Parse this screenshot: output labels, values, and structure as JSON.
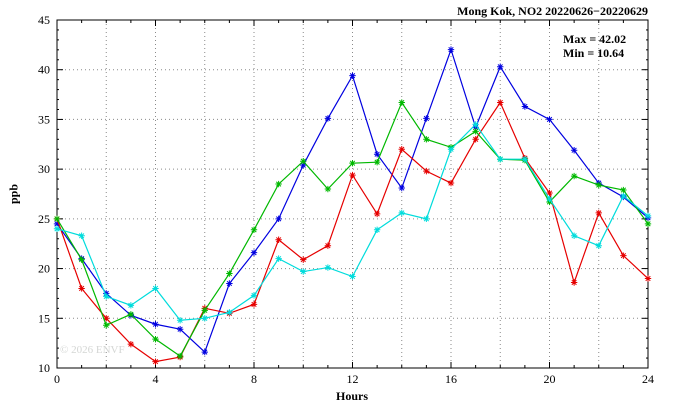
{
  "chart_data": {
    "type": "line",
    "title": "Mong Kok, NO2 20220626−20220629",
    "xlabel": "Hours",
    "ylabel": "ppb",
    "xlim": [
      0,
      24
    ],
    "ylim": [
      10,
      45
    ],
    "xticks": [
      0,
      4,
      8,
      12,
      16,
      20,
      24
    ],
    "yticks": [
      10,
      15,
      20,
      25,
      30,
      35,
      40,
      45
    ],
    "grid": true,
    "grid_x_step": 2,
    "grid_y_step": 5,
    "legend": "none",
    "annotations": [
      "Max = 42.02",
      "Min = 10.64"
    ],
    "stats": {
      "max": 42.02,
      "min": 10.64
    },
    "watermark": "© 2026 ENVF",
    "x": [
      0,
      1,
      2,
      3,
      4,
      5,
      6,
      7,
      8,
      9,
      10,
      11,
      12,
      13,
      14,
      15,
      16,
      17,
      18,
      19,
      20,
      21,
      22,
      23,
      24
    ],
    "series": [
      {
        "name": "blue",
        "color": "#0000e0",
        "values": [
          24.5,
          21.0,
          17.5,
          15.3,
          14.4,
          13.9,
          11.6,
          18.5,
          21.6,
          25.0,
          30.4,
          35.1,
          39.4,
          31.5,
          28.1,
          35.1,
          42.02,
          34.2,
          40.3,
          36.3,
          35.0,
          31.9,
          28.6,
          27.2,
          25.1
        ]
      },
      {
        "name": "red",
        "color": "#e60000",
        "values": [
          25.0,
          18.0,
          15.0,
          12.4,
          10.64,
          11.1,
          16.0,
          15.5,
          16.4,
          22.9,
          20.9,
          22.3,
          29.4,
          25.5,
          32.0,
          29.8,
          28.6,
          33.0,
          36.7,
          31.1,
          27.6,
          18.6,
          25.6,
          21.3,
          19.0
        ]
      },
      {
        "name": "green",
        "color": "#00b800",
        "values": [
          25.0,
          20.9,
          14.3,
          15.4,
          12.9,
          11.2,
          15.8,
          19.5,
          23.9,
          28.5,
          30.8,
          28.0,
          30.6,
          30.7,
          36.7,
          33.0,
          32.2,
          33.8,
          31.0,
          30.9,
          26.7,
          29.3,
          28.4,
          27.9,
          24.5
        ]
      },
      {
        "name": "cyan",
        "color": "#00dcdc",
        "values": [
          24.0,
          23.3,
          17.2,
          16.3,
          18.0,
          14.8,
          15.0,
          15.6,
          17.3,
          21.0,
          19.7,
          20.1,
          19.2,
          23.9,
          25.6,
          25.0,
          32.0,
          34.5,
          31.0,
          31.0,
          27.0,
          23.3,
          22.3,
          27.3,
          25.3
        ]
      }
    ]
  }
}
